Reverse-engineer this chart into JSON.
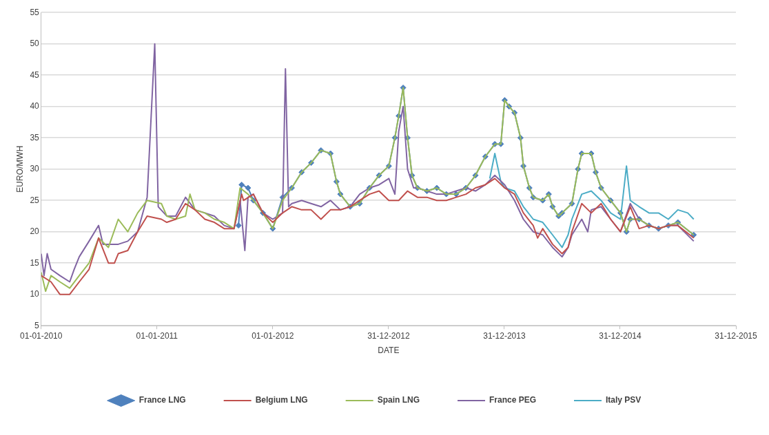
{
  "chart_data": {
    "type": "line",
    "xlabel": "DATE",
    "ylabel": "EURO/MWH",
    "xlim": [
      "2010-01-01",
      "2015-12-31"
    ],
    "xticks": [
      {
        "value": "2010-01-01",
        "label": "01-01-2010"
      },
      {
        "value": "2011-01-01",
        "label": "01-01-2011"
      },
      {
        "value": "2012-01-01",
        "label": "01-01-2012"
      },
      {
        "value": "2012-12-31",
        "label": "31-12-2012"
      },
      {
        "value": "2013-12-31",
        "label": "31-12-2013"
      },
      {
        "value": "2014-12-31",
        "label": "31-12-2014"
      },
      {
        "value": "2015-12-31",
        "label": "31-12-2015"
      }
    ],
    "ylim": [
      5,
      55
    ],
    "yticks": [
      5,
      10,
      15,
      20,
      25,
      30,
      35,
      40,
      45,
      50,
      55
    ],
    "grid": "y",
    "legend": "bottom",
    "marker": "none",
    "line_style": "solid",
    "series": [
      {
        "name": "France LNG",
        "color": "#4f81bd",
        "marker": "diamond",
        "x": [
          "2011-09-15",
          "2011-09-25",
          "2011-10-15",
          "2011-11-01",
          "2011-12-01",
          "2012-01-01",
          "2012-02-01",
          "2012-03-01",
          "2012-04-01",
          "2012-05-01",
          "2012-06-01",
          "2012-07-01",
          "2012-07-20",
          "2012-08-01",
          "2012-09-01",
          "2012-10-01",
          "2012-11-01",
          "2012-12-01",
          "2013-01-01",
          "2013-01-20",
          "2013-02-01",
          "2013-02-15",
          "2013-03-01",
          "2013-03-15",
          "2013-04-01",
          "2013-05-01",
          "2013-06-01",
          "2013-07-01",
          "2013-08-01",
          "2013-09-01",
          "2013-10-01",
          "2013-11-01",
          "2013-12-01",
          "2013-12-20",
          "2014-01-01",
          "2014-01-15",
          "2014-02-01",
          "2014-02-20",
          "2014-03-01",
          "2014-03-20",
          "2014-04-01",
          "2014-05-01",
          "2014-05-20",
          "2014-06-01",
          "2014-06-20",
          "2014-07-01",
          "2014-08-01",
          "2014-08-20",
          "2014-09-01",
          "2014-10-01",
          "2014-10-15",
          "2014-11-01",
          "2014-12-01",
          "2015-01-01",
          "2015-01-20",
          "2015-02-01",
          "2015-03-01",
          "2015-04-01",
          "2015-05-01",
          "2015-06-01",
          "2015-07-01",
          "2015-08-20"
        ],
        "values": [
          21,
          27.5,
          27,
          25,
          23,
          20.5,
          25.5,
          27,
          29.5,
          31,
          33,
          32.5,
          28,
          26,
          24,
          24.5,
          27,
          29,
          30.5,
          35,
          38.5,
          43,
          35,
          29,
          27,
          26.5,
          27,
          26,
          26,
          27,
          29,
          32,
          34,
          34,
          41,
          40,
          39,
          35,
          30.5,
          27,
          25.5,
          25,
          26,
          24,
          22.5,
          23,
          24.5,
          30,
          32.5,
          32.5,
          29.5,
          27,
          25,
          23,
          20,
          22,
          22,
          21,
          20.5,
          21,
          21.5,
          19.5
        ]
      },
      {
        "name": "Belgium LNG",
        "color": "#c0504d",
        "x": [
          "2010-01-01",
          "2010-02-01",
          "2010-03-01",
          "2010-04-01",
          "2010-05-01",
          "2010-06-01",
          "2010-07-01",
          "2010-08-01",
          "2010-08-20",
          "2010-09-01",
          "2010-10-01",
          "2010-11-01",
          "2010-12-01",
          "2011-01-15",
          "2011-02-01",
          "2011-03-01",
          "2011-04-01",
          "2011-05-01",
          "2011-06-01",
          "2011-07-01",
          "2011-08-01",
          "2011-09-01",
          "2011-09-25",
          "2011-10-01",
          "2011-11-01",
          "2011-12-01",
          "2012-01-01",
          "2012-02-01",
          "2012-03-01",
          "2012-04-01",
          "2012-05-01",
          "2012-06-01",
          "2012-07-01",
          "2012-08-01",
          "2012-09-01",
          "2012-10-01",
          "2012-11-01",
          "2012-12-01",
          "2013-01-01",
          "2013-02-01",
          "2013-03-01",
          "2013-04-01",
          "2013-05-01",
          "2013-06-01",
          "2013-07-01",
          "2013-08-01",
          "2013-09-01",
          "2013-10-01",
          "2013-11-01",
          "2013-12-01",
          "2014-01-01",
          "2014-02-01",
          "2014-03-01",
          "2014-04-01",
          "2014-04-15",
          "2014-05-01",
          "2014-06-01",
          "2014-07-01",
          "2014-07-20",
          "2014-08-01",
          "2014-09-01",
          "2014-10-01",
          "2014-11-01",
          "2014-12-01",
          "2015-01-01",
          "2015-02-01",
          "2015-03-01",
          "2015-04-01",
          "2015-05-01",
          "2015-06-01",
          "2015-07-01",
          "2015-08-20"
        ],
        "values": [
          13,
          12,
          10,
          10,
          12,
          14,
          19,
          15,
          15,
          16.5,
          17,
          20,
          22.5,
          22,
          21.5,
          22,
          24.5,
          23.5,
          22,
          21.5,
          20.5,
          20.5,
          26,
          25,
          26,
          23,
          21.5,
          23,
          24,
          23.5,
          23.5,
          22,
          23.5,
          23.5,
          24,
          25,
          26,
          26.5,
          25,
          25,
          26.5,
          25.5,
          25.5,
          25,
          25,
          25.5,
          26,
          27,
          27.5,
          28.5,
          27,
          26,
          23,
          21,
          19,
          20.5,
          18,
          16.5,
          17.5,
          20,
          24.5,
          23,
          24.5,
          22,
          20,
          24,
          20.5,
          21,
          20.5,
          21,
          21,
          19
        ]
      },
      {
        "name": "Spain LNG",
        "color": "#9bbb59",
        "x": [
          "2010-01-01",
          "2010-01-15",
          "2010-02-01",
          "2010-03-01",
          "2010-04-01",
          "2010-05-01",
          "2010-06-01",
          "2010-07-01",
          "2010-08-01",
          "2010-09-01",
          "2010-10-01",
          "2010-11-01",
          "2010-12-01",
          "2011-01-15",
          "2011-02-01",
          "2011-03-01",
          "2011-04-01",
          "2011-04-15",
          "2011-05-01",
          "2011-06-01",
          "2011-07-01",
          "2011-08-01",
          "2011-09-01",
          "2011-09-20",
          "2011-10-15",
          "2011-11-01",
          "2011-12-01",
          "2012-01-01",
          "2012-02-01",
          "2012-03-01",
          "2012-04-01",
          "2012-05-01",
          "2012-06-01",
          "2012-07-01",
          "2012-07-20",
          "2012-08-01",
          "2012-09-01",
          "2012-10-01",
          "2012-11-01",
          "2012-12-01",
          "2013-01-01",
          "2013-01-20",
          "2013-02-01",
          "2013-02-15",
          "2013-03-01",
          "2013-03-15",
          "2013-04-01",
          "2013-05-01",
          "2013-06-01",
          "2013-07-01",
          "2013-08-01",
          "2013-09-01",
          "2013-10-01",
          "2013-11-01",
          "2013-12-01",
          "2013-12-20",
          "2014-01-01",
          "2014-01-15",
          "2014-02-01",
          "2014-02-20",
          "2014-03-01",
          "2014-03-20",
          "2014-04-01",
          "2014-05-01",
          "2014-05-20",
          "2014-06-01",
          "2014-06-20",
          "2014-07-01",
          "2014-08-01",
          "2014-08-20",
          "2014-09-01",
          "2014-10-01",
          "2014-10-15",
          "2014-11-01",
          "2014-12-01",
          "2015-01-01",
          "2015-01-20",
          "2015-02-01",
          "2015-03-01",
          "2015-04-01",
          "2015-05-01",
          "2015-06-01",
          "2015-07-01",
          "2015-08-20"
        ],
        "values": [
          13.5,
          10.5,
          13,
          12,
          11,
          13,
          15,
          19,
          17.5,
          22,
          20,
          23,
          25,
          24.5,
          22.5,
          22,
          22.5,
          26,
          23.5,
          23,
          22,
          21.5,
          20.5,
          27,
          26,
          25,
          23,
          20.5,
          25,
          27,
          29.5,
          31,
          33,
          32.5,
          28,
          26,
          24,
          24.5,
          27,
          29,
          30.5,
          35,
          38.5,
          43,
          35,
          29,
          27,
          26.5,
          27,
          26,
          26,
          27,
          29,
          32,
          34,
          34,
          41,
          40,
          39,
          35,
          30.5,
          27,
          25.5,
          25,
          26,
          24,
          22.5,
          23,
          24.5,
          30,
          32.5,
          32.5,
          29.5,
          27,
          25,
          23,
          20,
          22,
          22,
          21,
          20.5,
          21,
          21.5,
          19.5
        ]
      },
      {
        "name": "France PEG",
        "color": "#8064a2",
        "x": [
          "2010-01-01",
          "2010-01-10",
          "2010-01-20",
          "2010-02-01",
          "2010-03-01",
          "2010-04-01",
          "2010-04-15",
          "2010-05-01",
          "2010-06-01",
          "2010-07-01",
          "2010-07-15",
          "2010-08-01",
          "2010-09-01",
          "2010-10-01",
          "2010-11-01",
          "2010-12-01",
          "2010-12-25",
          "2011-01-05",
          "2011-02-01",
          "2011-03-01",
          "2011-04-01",
          "2011-05-01",
          "2011-06-01",
          "2011-07-01",
          "2011-08-01",
          "2011-09-01",
          "2011-09-20",
          "2011-10-05",
          "2011-10-15",
          "2011-11-01",
          "2011-12-01",
          "2012-01-01",
          "2012-02-01",
          "2012-02-10",
          "2012-02-20",
          "2012-03-01",
          "2012-04-01",
          "2012-05-01",
          "2012-06-01",
          "2012-07-01",
          "2012-08-01",
          "2012-09-01",
          "2012-10-01",
          "2012-11-01",
          "2012-12-01",
          "2013-01-01",
          "2013-01-20",
          "2013-02-01",
          "2013-02-15",
          "2013-03-01",
          "2013-03-20",
          "2013-04-01",
          "2013-05-01",
          "2013-06-01",
          "2013-07-01",
          "2013-08-01",
          "2013-09-01",
          "2013-10-01",
          "2013-11-01",
          "2013-12-01",
          "2014-01-01",
          "2014-02-01",
          "2014-03-01",
          "2014-04-01",
          "2014-05-01",
          "2014-06-01",
          "2014-07-01",
          "2014-07-20",
          "2014-08-01",
          "2014-09-01",
          "2014-09-20",
          "2014-10-01",
          "2014-11-01",
          "2014-12-01",
          "2015-01-01",
          "2015-02-01",
          "2015-03-01",
          "2015-04-01",
          "2015-05-01",
          "2015-06-01",
          "2015-07-01",
          "2015-08-20"
        ],
        "values": [
          16.5,
          13,
          16.5,
          14,
          13,
          12,
          14,
          16,
          18.5,
          21,
          18,
          18,
          18,
          18.5,
          20,
          25.5,
          50,
          24,
          22.5,
          22.5,
          25.5,
          23.5,
          23,
          22.5,
          21,
          20.5,
          25,
          17,
          25.5,
          26,
          23,
          22,
          23,
          46,
          24,
          24.5,
          25,
          24.5,
          24,
          25,
          23.5,
          24,
          26,
          27,
          27.5,
          28.5,
          26,
          36,
          40,
          30,
          27,
          27,
          26.5,
          26,
          26,
          26.5,
          27,
          26.5,
          27.5,
          29,
          27.5,
          25,
          22,
          20,
          19.5,
          17.5,
          16,
          17.5,
          19.5,
          22,
          20,
          23.5,
          24,
          22,
          20,
          24.5,
          22,
          21,
          20.5,
          21,
          21,
          18.5
        ]
      },
      {
        "name": "Italy PSV",
        "color": "#4bacc6",
        "x": [
          "2013-11-15",
          "2013-12-01",
          "2013-12-20",
          "2014-01-01",
          "2014-02-01",
          "2014-03-01",
          "2014-04-01",
          "2014-05-01",
          "2014-06-01",
          "2014-07-01",
          "2014-07-20",
          "2014-08-01",
          "2014-09-01",
          "2014-10-01",
          "2014-11-01",
          "2014-12-01",
          "2015-01-01",
          "2015-01-20",
          "2015-02-01",
          "2015-03-01",
          "2015-04-01",
          "2015-05-01",
          "2015-06-01",
          "2015-07-01",
          "2015-08-01",
          "2015-08-20"
        ],
        "values": [
          28.5,
          32.5,
          28,
          27,
          26.5,
          24,
          22,
          21.5,
          19.5,
          17.5,
          19.5,
          22,
          26,
          26.5,
          25,
          23,
          22,
          30.5,
          25,
          24,
          23,
          23,
          22,
          23.5,
          23,
          22
        ]
      }
    ]
  }
}
